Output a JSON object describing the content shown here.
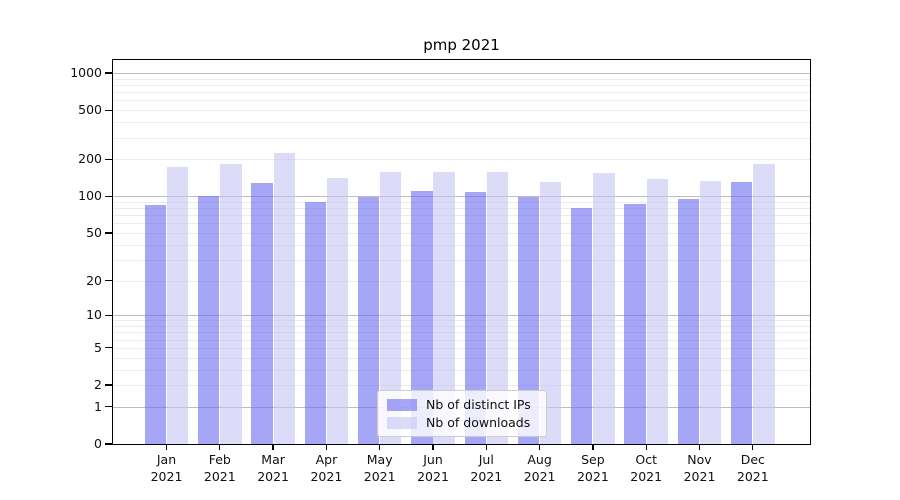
{
  "title": "pmp 2021",
  "chart_data": {
    "type": "bar",
    "title": "pmp 2021",
    "categories": [
      "Jan 2021",
      "Feb 2021",
      "Mar 2021",
      "Apr 2021",
      "May 2021",
      "Jun 2021",
      "Jul 2021",
      "Aug 2021",
      "Sep 2021",
      "Oct 2021",
      "Nov 2021",
      "Dec 2021"
    ],
    "series": [
      {
        "name": "Nb of distinct IPs",
        "color": "#6b6bf0",
        "opacity": 0.6,
        "values": [
          85,
          100,
          128,
          90,
          99,
          111,
          109,
          98,
          80,
          87,
          95,
          130
        ]
      },
      {
        "name": "Nb of downloads",
        "color": "#c5c5f5",
        "opacity": 0.6,
        "values": [
          173,
          182,
          223,
          140,
          158,
          159,
          157,
          131,
          156,
          139,
          134,
          182
        ]
      }
    ],
    "y_axis": {
      "scale": "log1p",
      "ylim": [
        0,
        1275
      ],
      "ticks": [
        0,
        1,
        2,
        5,
        10,
        20,
        50,
        100,
        200,
        500,
        1000
      ],
      "major_gridlines": [
        1,
        10,
        100,
        1000
      ],
      "minor_gridlines": [
        2,
        3,
        4,
        5,
        6,
        7,
        8,
        9,
        20,
        30,
        40,
        50,
        60,
        70,
        80,
        90,
        200,
        300,
        400,
        500,
        600,
        700,
        800,
        900
      ]
    },
    "xlabel": "",
    "ylabel": "",
    "grid": true,
    "legend_position": "lower center",
    "gridline_color_major": "#bdbdbd",
    "gridline_color_minor": "#ececec",
    "axis_color": "#000000"
  }
}
